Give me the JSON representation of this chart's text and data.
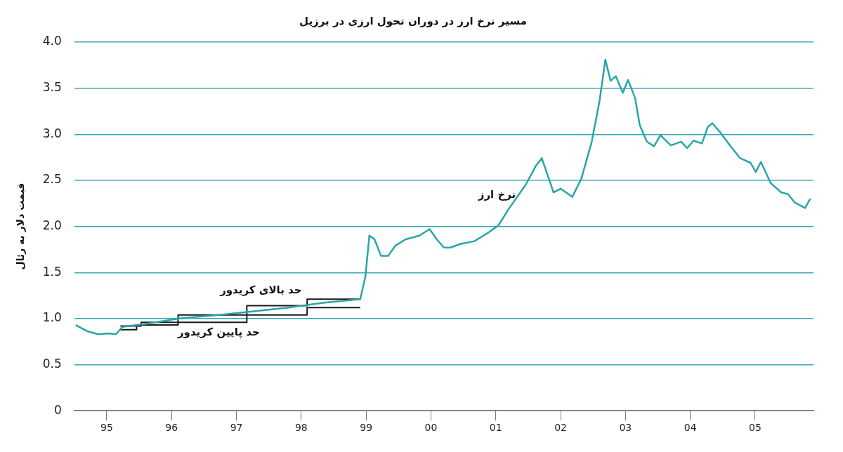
{
  "chart_data": {
    "type": "line",
    "title": "مسیر نرخ ارز در دوران تحول ارزی در برزیل",
    "ylabel": "قیمت دلار به رئال",
    "xlim": [
      1994.5,
      2005.9
    ],
    "xticks": [
      {
        "value": 1995,
        "label": "95"
      },
      {
        "value": 1996,
        "label": "96"
      },
      {
        "value": 1997,
        "label": "97"
      },
      {
        "value": 1998,
        "label": "98"
      },
      {
        "value": 1999,
        "label": "99"
      },
      {
        "value": 2000,
        "label": "00"
      },
      {
        "value": 2001,
        "label": "01"
      },
      {
        "value": 2002,
        "label": "02"
      },
      {
        "value": 2003,
        "label": "03"
      },
      {
        "value": 2004,
        "label": "04"
      },
      {
        "value": 2005,
        "label": "05"
      }
    ],
    "ylim": [
      0,
      4
    ],
    "yticks": [
      0,
      {
        "value": 0.5,
        "label": "0.5"
      },
      {
        "value": 1,
        "label": "1.0"
      },
      {
        "value": 1.5,
        "label": "1.5"
      },
      {
        "value": 2,
        "label": "2.0"
      },
      {
        "value": 2.5,
        "label": "2.5"
      },
      {
        "value": 3,
        "label": "3.0"
      },
      {
        "value": 3.5,
        "label": "3.5"
      },
      {
        "value": 4,
        "label": "4.0"
      }
    ],
    "grid": "y",
    "legend": false,
    "marker": "none",
    "series": [
      {
        "name": "نرخ ارز",
        "color": "#2aa5a8",
        "x": [
          1994.52,
          1994.71,
          1994.87,
          1995.03,
          1995.14,
          1995.24,
          1995.67,
          1996.1,
          1996.73,
          1997.27,
          1997.8,
          1998.33,
          1998.91,
          1998.99,
          1999.05,
          1999.13,
          1999.23,
          1999.34,
          1999.45,
          1999.61,
          1999.82,
          1999.98,
          2000.09,
          2000.2,
          2000.3,
          2000.46,
          2000.67,
          2000.88,
          2001.04,
          2001.2,
          2001.46,
          2001.62,
          2001.71,
          2001.89,
          2002.0,
          2002.18,
          2002.32,
          2002.48,
          2002.6,
          2002.69,
          2002.77,
          2002.85,
          2002.96,
          2003.04,
          2003.15,
          2003.22,
          2003.33,
          2003.44,
          2003.54,
          2003.7,
          2003.86,
          2003.95,
          2004.05,
          2004.18,
          2004.27,
          2004.34,
          2004.45,
          2004.61,
          2004.77,
          2004.93,
          2005.01,
          2005.09,
          2005.24,
          2005.4,
          2005.51,
          2005.61,
          2005.77,
          2005.85
        ],
        "values": [
          0.93,
          0.86,
          0.83,
          0.84,
          0.83,
          0.91,
          0.95,
          1.0,
          1.04,
          1.08,
          1.12,
          1.17,
          1.21,
          1.46,
          1.9,
          1.86,
          1.68,
          1.68,
          1.79,
          1.86,
          1.9,
          1.97,
          1.86,
          1.77,
          1.77,
          1.81,
          1.84,
          1.93,
          2.01,
          2.19,
          2.45,
          2.66,
          2.74,
          2.37,
          2.41,
          2.32,
          2.52,
          2.92,
          3.36,
          3.81,
          3.58,
          3.63,
          3.45,
          3.59,
          3.39,
          3.1,
          2.92,
          2.87,
          2.99,
          2.88,
          2.92,
          2.85,
          2.93,
          2.9,
          3.08,
          3.12,
          3.03,
          2.88,
          2.74,
          2.69,
          2.59,
          2.7,
          2.47,
          2.37,
          2.35,
          2.26,
          2.2,
          2.3
        ]
      },
      {
        "name": "حد بالای کریدور",
        "type": "step",
        "color": "#1a1a1a",
        "x": [
          1995.21,
          1995.53,
          1996.1,
          1997.16,
          1998.09,
          1998.91
        ],
        "values": [
          0.92,
          0.96,
          1.04,
          1.14,
          1.21,
          1.21
        ]
      },
      {
        "name": "حد پایین کریدور",
        "type": "step",
        "color": "#1a1a1a",
        "x": [
          1995.21,
          1995.46,
          1996.1,
          1997.16,
          1998.09,
          1998.91
        ],
        "values": [
          0.88,
          0.93,
          0.96,
          1.04,
          1.12,
          1.12
        ]
      }
    ]
  }
}
